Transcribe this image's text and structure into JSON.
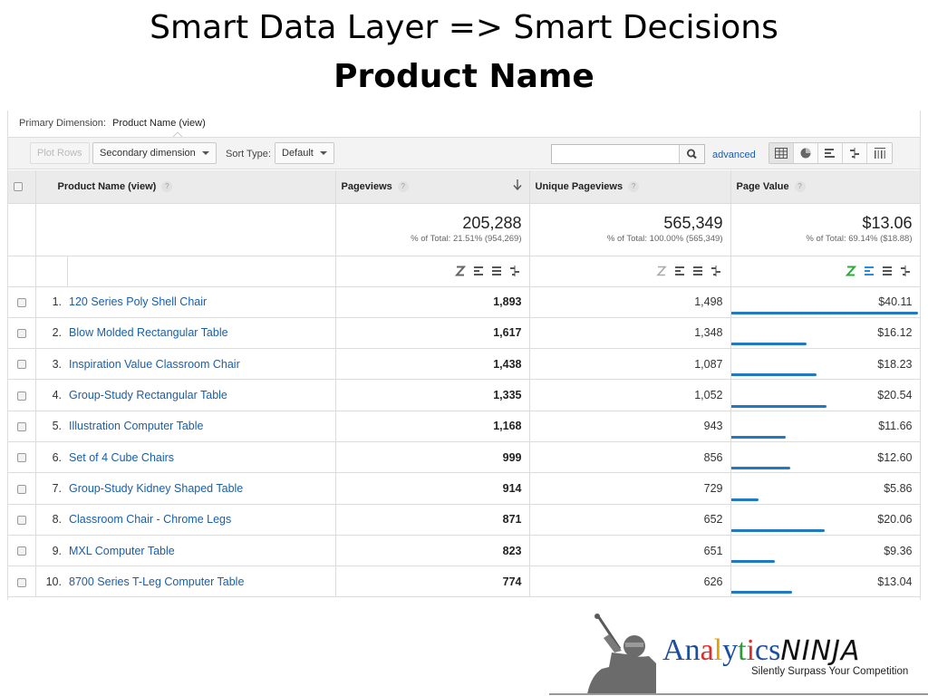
{
  "slide": {
    "title": "Smart Data Layer => Smart Decisions",
    "subtitle": "Product Name"
  },
  "report": {
    "primary_dimension_label": "Primary Dimension:",
    "primary_dimension_value": "Product Name (view)",
    "toolbar": {
      "plot_rows": "Plot Rows",
      "secondary_dimension": "Secondary dimension",
      "sort_type_label": "Sort Type:",
      "sort_type_value": "Default",
      "search_placeholder": "",
      "advanced": "advanced"
    },
    "columns": {
      "product_name": "Product Name (view)",
      "pageviews": "Pageviews",
      "unique_pageviews": "Unique Pageviews",
      "page_value": "Page Value",
      "help": "?"
    },
    "totals": {
      "pageviews": "205,288",
      "pageviews_sub": "% of Total: 21.51% (954,269)",
      "unique_pageviews": "565,349",
      "unique_pageviews_sub": "% of Total: 100.00% (565,349)",
      "page_value": "$13.06",
      "page_value_sub": "% of Total: 69.14% ($18.88)"
    },
    "rows": [
      {
        "rank": "1.",
        "name": "120 Series Poly Shell Chair",
        "pageviews": "1,893",
        "unique": "1,498",
        "value": "$40.11",
        "value_num": 40.11
      },
      {
        "rank": "2.",
        "name": "Blow Molded Rectangular Table",
        "pageviews": "1,617",
        "unique": "1,348",
        "value": "$16.12",
        "value_num": 16.12
      },
      {
        "rank": "3.",
        "name": "Inspiration Value Classroom Chair",
        "pageviews": "1,438",
        "unique": "1,087",
        "value": "$18.23",
        "value_num": 18.23
      },
      {
        "rank": "4.",
        "name": "Group-Study Rectangular Table",
        "pageviews": "1,335",
        "unique": "1,052",
        "value": "$20.54",
        "value_num": 20.54
      },
      {
        "rank": "5.",
        "name": "Illustration Computer Table",
        "pageviews": "1,168",
        "unique": "943",
        "value": "$11.66",
        "value_num": 11.66
      },
      {
        "rank": "6.",
        "name": "Set of 4 Cube Chairs",
        "pageviews": "999",
        "unique": "856",
        "value": "$12.60",
        "value_num": 12.6
      },
      {
        "rank": "7.",
        "name": "Group-Study Kidney Shaped Table",
        "pageviews": "914",
        "unique": "729",
        "value": "$5.86",
        "value_num": 5.86
      },
      {
        "rank": "8.",
        "name": "Classroom Chair - Chrome Legs",
        "pageviews": "871",
        "unique": "652",
        "value": "$20.06",
        "value_num": 20.06
      },
      {
        "rank": "9.",
        "name": "MXL Computer Table",
        "pageviews": "823",
        "unique": "651",
        "value": "$9.36",
        "value_num": 9.36
      },
      {
        "rank": "10.",
        "name": "8700 Series T-Leg Computer Table",
        "pageviews": "774",
        "unique": "626",
        "value": "$13.04",
        "value_num": 13.04
      }
    ],
    "bar_color": "#1f79c4",
    "link_color": "#1a5ea8",
    "active_vis_color": "#2eaa3c",
    "active_bar_icon_color": "#2a8ad8"
  },
  "brand": {
    "letters": [
      {
        "t": "A",
        "c": "#1a4fa0"
      },
      {
        "t": "n",
        "c": "#1a4fa0"
      },
      {
        "t": "a",
        "c": "#d8312b"
      },
      {
        "t": "l",
        "c": "#e2a200"
      },
      {
        "t": "y",
        "c": "#1a4fa0"
      },
      {
        "t": "t",
        "c": "#2e9a3a"
      },
      {
        "t": "i",
        "c": "#d8312b"
      },
      {
        "t": "c",
        "c": "#1a4fa0"
      },
      {
        "t": "s",
        "c": "#1a4fa0"
      }
    ],
    "ninja": "NINJA",
    "tagline": "Silently Surpass Your Competition"
  }
}
